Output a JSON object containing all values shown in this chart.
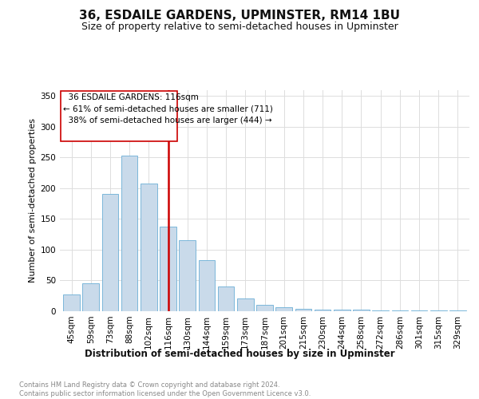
{
  "title": "36, ESDAILE GARDENS, UPMINSTER, RM14 1BU",
  "subtitle": "Size of property relative to semi-detached houses in Upminster",
  "xlabel": "Distribution of semi-detached houses by size in Upminster",
  "ylabel": "Number of semi-detached properties",
  "categories": [
    "45sqm",
    "59sqm",
    "73sqm",
    "88sqm",
    "102sqm",
    "116sqm",
    "130sqm",
    "144sqm",
    "159sqm",
    "173sqm",
    "187sqm",
    "201sqm",
    "215sqm",
    "230sqm",
    "244sqm",
    "258sqm",
    "272sqm",
    "286sqm",
    "301sqm",
    "315sqm",
    "329sqm"
  ],
  "values": [
    27,
    46,
    191,
    253,
    207,
    137,
    115,
    83,
    40,
    21,
    11,
    6,
    4,
    3,
    2,
    2,
    1,
    1,
    1,
    1,
    1
  ],
  "property_index": 5,
  "property_label": "36 ESDAILE GARDENS: 116sqm",
  "pct_smaller": 61,
  "pct_larger": 38,
  "n_smaller": 711,
  "n_larger": 444,
  "bar_color": "#c9daea",
  "bar_edge_color": "#6baed6",
  "vline_color": "#cc0000",
  "annotation_box_color": "#cc0000",
  "annotation_text_color": "#000000",
  "grid_color": "#dddddd",
  "background_color": "#ffffff",
  "footer_text": "Contains HM Land Registry data © Crown copyright and database right 2024.\nContains public sector information licensed under the Open Government Licence v3.0.",
  "ylim": [
    0,
    360
  ],
  "title_fontsize": 11,
  "subtitle_fontsize": 9,
  "ylabel_fontsize": 8,
  "xlabel_fontsize": 8.5,
  "tick_fontsize": 7.5,
  "annotation_fontsize": 7.5,
  "footer_fontsize": 6
}
